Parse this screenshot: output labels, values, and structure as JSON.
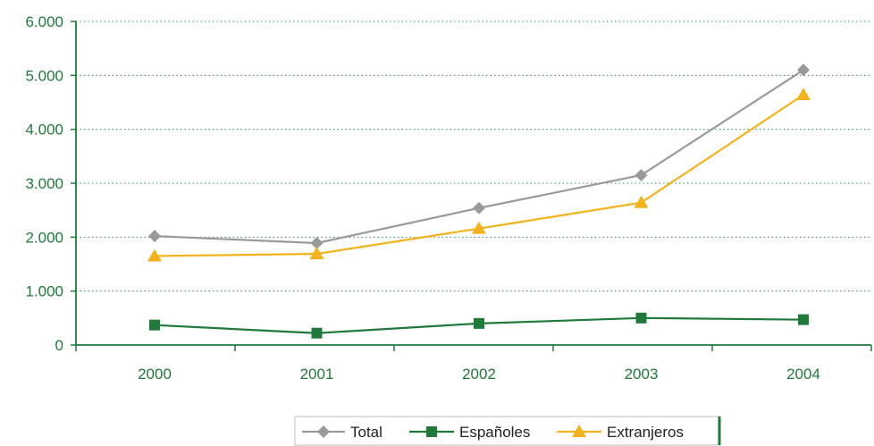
{
  "colors": {
    "axis": "#1f7a3a",
    "grid": "#2e8b57",
    "total": "#9a9a9a",
    "espanoles": "#1f7a3a",
    "extranjeros": "#f3b21a",
    "legend_border": "#1f7a3a"
  },
  "chart_data": {
    "type": "line",
    "title": "",
    "xlabel": "",
    "ylabel": "",
    "categories": [
      "2000",
      "2001",
      "2002",
      "2003",
      "2004"
    ],
    "ylim": [
      0,
      6000
    ],
    "yticks": [
      0,
      1000,
      2000,
      3000,
      4000,
      5000,
      6000
    ],
    "ytick_labels": [
      "0",
      "1.000",
      "2.000",
      "3.000",
      "4.000",
      "5.000",
      "6.000"
    ],
    "grid": true,
    "legend_position": "bottom",
    "series": [
      {
        "name": "Total",
        "marker": "diamond",
        "values": [
          2020,
          1890,
          2540,
          3150,
          5100
        ]
      },
      {
        "name": "Españoles",
        "marker": "square",
        "values": [
          370,
          220,
          400,
          500,
          470
        ]
      },
      {
        "name": "Extranjeros",
        "marker": "triangle",
        "values": [
          1650,
          1690,
          2160,
          2640,
          4640
        ]
      }
    ]
  }
}
